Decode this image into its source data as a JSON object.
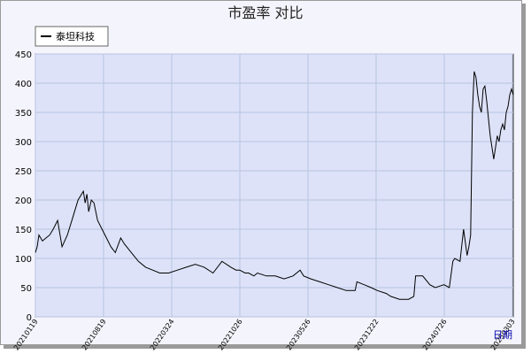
{
  "chart_data": {
    "type": "line",
    "title": "市盈率  对比",
    "corner_label": "日期",
    "ylim": [
      0,
      450
    ],
    "y_ticks": [
      0,
      50,
      100,
      150,
      200,
      250,
      300,
      350,
      400,
      450
    ],
    "x_tick_labels": [
      "20210119",
      "20210819",
      "20220324",
      "20221026",
      "20230526",
      "20231222",
      "20240726",
      "20250303"
    ],
    "grid": true,
    "legend_position": "top-left",
    "colors": {
      "line": "#000000",
      "plot_bg": "#dde2f8",
      "grid": "#b8c4e0"
    },
    "series": [
      {
        "name": "泰坦科技",
        "x_index": [
          0,
          2,
          4,
          8,
          12,
          16,
          20,
          25,
          30,
          36,
          42,
          48,
          54,
          56,
          58,
          60,
          63,
          66,
          70,
          75,
          80,
          85,
          90,
          96,
          100,
          108,
          116,
          124,
          132,
          140,
          150,
          160,
          170,
          180,
          190,
          200,
          210,
          215,
          220,
          226,
          230,
          236,
          240,
          246,
          250,
          260,
          270,
          280,
          290,
          298,
          302,
          310,
          320,
          330,
          340,
          350,
          360,
          362,
          370,
          378,
          385,
          395,
          400,
          410,
          420,
          426,
          428,
          436,
          444,
          450,
          454,
          460,
          466,
          470,
          472,
          478,
          482,
          486,
          488,
          490,
          492,
          494,
          496,
          498,
          500,
          502,
          504,
          506,
          508,
          510,
          512,
          514,
          516,
          518,
          520,
          522,
          524,
          526,
          528,
          530,
          532,
          534,
          536,
          538
        ],
        "values": [
          110,
          120,
          140,
          130,
          135,
          140,
          150,
          165,
          120,
          140,
          170,
          200,
          215,
          195,
          210,
          180,
          200,
          195,
          165,
          150,
          135,
          120,
          110,
          135,
          125,
          110,
          95,
          85,
          80,
          75,
          75,
          80,
          85,
          90,
          85,
          75,
          95,
          90,
          85,
          80,
          80,
          75,
          75,
          70,
          75,
          70,
          70,
          65,
          70,
          80,
          70,
          65,
          60,
          55,
          50,
          45,
          45,
          60,
          55,
          50,
          45,
          40,
          35,
          30,
          30,
          35,
          70,
          70,
          55,
          50,
          52,
          55,
          50,
          95,
          100,
          95,
          150,
          105,
          120,
          140,
          350,
          420,
          410,
          380,
          360,
          350,
          390,
          395,
          370,
          340,
          310,
          290,
          270,
          290,
          310,
          300,
          320,
          330,
          320,
          350,
          360,
          380,
          390,
          380
        ]
      }
    ]
  }
}
